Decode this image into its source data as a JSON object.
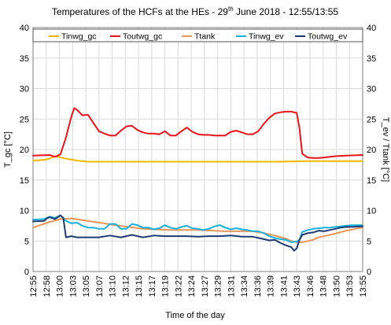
{
  "chart_data": {
    "type": "line",
    "title_main": "Temperatures of the HCFs at the HEs - 29",
    "title_sup": "th",
    "title_rest": " June 2018 - 12:55/13:55",
    "xlabel": "Time of the day",
    "ylabel_left": "T_gc [°C]",
    "ylabel_right": "T_ev / Ttank [°C]",
    "ylim": [
      0,
      40
    ],
    "y_ticks": [
      0,
      5,
      10,
      15,
      20,
      25,
      30,
      35,
      40
    ],
    "x_ticks": [
      "12:55",
      "12:58",
      "13:00",
      "13:03",
      "13:05",
      "13:07",
      "13:10",
      "13:12",
      "13:15",
      "13:17",
      "13:19",
      "13:22",
      "13:24",
      "13:27",
      "13:29",
      "13:31",
      "13:34",
      "13:36",
      "13:39",
      "13:41",
      "13:43",
      "13:46",
      "13:48",
      "13:50",
      "13:53",
      "13:55"
    ],
    "grid": true,
    "legend_position": "top",
    "series": [
      {
        "name": "Tinwg_gc",
        "color": "#f5b800",
        "x": [
          0,
          2,
          3,
          4,
          5,
          6,
          8,
          10,
          15,
          20,
          25,
          30,
          35,
          40,
          45,
          50,
          55,
          60
        ],
        "values": [
          18.2,
          18.3,
          18.5,
          18.9,
          18.7,
          18.5,
          18.2,
          18.0,
          18.0,
          18.0,
          18.0,
          18.0,
          18.0,
          18.0,
          18.0,
          18.1,
          18.1,
          18.1
        ]
      },
      {
        "name": "Toutwg_gc",
        "color": "#e8141a",
        "x": [
          0,
          3,
          4,
          5,
          6,
          7,
          7.5,
          8,
          9,
          10,
          12,
          13,
          14,
          15,
          16,
          17,
          18,
          19,
          20,
          21,
          22,
          23,
          24,
          25,
          26,
          27,
          28,
          29,
          30,
          31,
          32,
          33,
          34,
          35,
          36,
          37,
          38,
          39,
          40,
          41,
          42,
          43,
          44,
          45,
          46,
          47,
          48,
          48.5,
          49,
          50,
          51,
          52,
          53,
          55,
          57,
          60
        ],
        "values": [
          19.0,
          19.1,
          18.8,
          19.2,
          22.0,
          25.5,
          26.8,
          26.5,
          25.6,
          25.7,
          23.0,
          22.6,
          22.3,
          22.3,
          23.1,
          23.8,
          23.9,
          23.2,
          22.8,
          22.6,
          22.6,
          22.5,
          23.0,
          22.3,
          22.3,
          23.0,
          23.6,
          22.9,
          22.5,
          22.4,
          22.4,
          22.3,
          22.3,
          22.3,
          22.9,
          23.1,
          22.8,
          22.5,
          22.5,
          23.0,
          24.2,
          25.2,
          25.9,
          26.1,
          26.2,
          26.2,
          26.0,
          23.5,
          19.3,
          18.7,
          18.6,
          18.6,
          18.7,
          18.9,
          19.0,
          19.1
        ]
      },
      {
        "name": "Ttank",
        "color": "#e8955a",
        "x": [
          0,
          3,
          5,
          7,
          10,
          15,
          20,
          25,
          30,
          35,
          40,
          42,
          44,
          46,
          47,
          48,
          49,
          50,
          51,
          52,
          55,
          57,
          60
        ],
        "values": [
          7.2,
          8.1,
          8.6,
          8.7,
          8.3,
          7.6,
          7.0,
          6.8,
          6.8,
          6.6,
          6.6,
          6.3,
          5.9,
          5.4,
          5.0,
          4.8,
          4.8,
          5.0,
          5.2,
          5.6,
          6.2,
          6.7,
          7.2
        ]
      },
      {
        "name": "Tinwg_ev",
        "color": "#1ab0dc",
        "x": [
          0,
          2,
          3,
          4,
          5,
          6,
          7,
          8,
          9,
          10,
          11,
          12,
          13,
          14,
          15,
          16,
          17,
          18,
          19,
          20,
          21,
          22,
          23,
          24,
          25,
          26,
          27,
          28,
          29,
          30,
          31,
          32,
          33,
          34,
          35,
          36,
          37,
          38,
          39,
          40,
          41,
          42,
          43,
          44,
          45,
          46,
          47,
          48,
          48.5,
          49,
          50,
          51,
          52,
          53,
          54,
          55,
          56,
          57,
          58,
          60
        ],
        "values": [
          8.5,
          8.6,
          9.0,
          8.8,
          9.2,
          8.3,
          7.9,
          8.0,
          7.5,
          7.2,
          7.2,
          7.0,
          7.0,
          7.8,
          7.8,
          7.0,
          7.0,
          7.8,
          7.6,
          7.2,
          7.2,
          6.9,
          7.1,
          7.6,
          7.2,
          7.0,
          7.3,
          7.5,
          7.1,
          7.0,
          6.8,
          7.0,
          7.4,
          7.6,
          7.2,
          6.9,
          7.1,
          6.9,
          6.8,
          6.6,
          6.6,
          6.3,
          5.8,
          5.5,
          5.3,
          5.2,
          4.8,
          4.9,
          5.2,
          6.5,
          6.8,
          7.0,
          7.1,
          7.2,
          7.2,
          7.3,
          7.4,
          7.5,
          7.6,
          7.6
        ]
      },
      {
        "name": "Toutwg_ev",
        "color": "#1f3b73",
        "x": [
          0,
          2,
          2.5,
          3,
          4,
          5,
          5.5,
          6,
          7,
          8,
          9,
          10,
          12,
          14,
          16,
          18,
          20,
          22,
          24,
          26,
          28,
          30,
          32,
          34,
          36,
          38,
          40,
          42,
          43,
          44,
          45,
          46,
          47,
          47.5,
          48,
          48.5,
          49,
          50,
          51,
          52,
          53,
          54,
          55,
          56,
          57,
          58,
          60
        ],
        "values": [
          8.2,
          8.3,
          8.7,
          8.9,
          8.6,
          9.2,
          8.8,
          5.6,
          5.8,
          5.6,
          5.6,
          5.6,
          5.6,
          5.9,
          5.6,
          6.0,
          5.6,
          5.9,
          5.8,
          5.8,
          5.8,
          5.7,
          5.8,
          5.8,
          5.9,
          5.7,
          5.7,
          5.3,
          5.1,
          5.2,
          4.7,
          4.3,
          4.0,
          3.4,
          3.8,
          5.2,
          6.0,
          6.3,
          6.4,
          6.7,
          6.6,
          6.8,
          7.0,
          7.2,
          7.3,
          7.3,
          7.4
        ]
      }
    ]
  }
}
